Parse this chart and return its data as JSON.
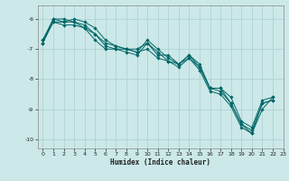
{
  "xlabel": "Humidex (Indice chaleur)",
  "bg_color": "#cce8e8",
  "line_color": "#006666",
  "grid_color": "#aacfcf",
  "xlim": [
    -0.5,
    23
  ],
  "ylim": [
    -10.3,
    -5.55
  ],
  "yticks": [
    -10,
    -9,
    -8,
    -7,
    -6
  ],
  "xticks": [
    0,
    1,
    2,
    3,
    4,
    5,
    6,
    7,
    8,
    9,
    10,
    11,
    12,
    13,
    14,
    15,
    16,
    17,
    18,
    19,
    20,
    21,
    22,
    23
  ],
  "marker_series": [
    {
      "x": [
        0,
        1,
        2,
        3,
        4,
        5,
        6,
        7,
        8,
        9,
        10,
        11,
        12,
        13,
        14,
        15,
        16,
        17,
        18,
        19,
        20,
        21,
        22
      ],
      "y": [
        -6.7,
        -6.1,
        -6.1,
        -6.0,
        -6.1,
        -6.3,
        -6.7,
        -6.9,
        -7.0,
        -7.0,
        -6.8,
        -7.2,
        -7.2,
        -7.5,
        -7.2,
        -7.5,
        -8.3,
        -8.3,
        -8.6,
        -9.4,
        -9.6,
        -8.7,
        -8.6
      ]
    },
    {
      "x": [
        0,
        1,
        2,
        3,
        4,
        5,
        6,
        7,
        8,
        9,
        10,
        11,
        12,
        13,
        14,
        15,
        16,
        17,
        18,
        19,
        20,
        21,
        22
      ],
      "y": [
        -6.8,
        -6.0,
        -6.1,
        -6.1,
        -6.3,
        -6.7,
        -7.0,
        -7.0,
        -7.1,
        -7.2,
        -6.8,
        -7.1,
        -7.4,
        -7.5,
        -7.3,
        -7.7,
        -8.4,
        -8.5,
        -8.9,
        -9.6,
        -9.8,
        -9.0,
        -8.6
      ]
    },
    {
      "x": [
        0,
        1,
        2,
        3,
        4,
        5,
        6,
        7,
        8,
        9,
        10,
        11,
        12,
        13,
        14,
        15,
        16,
        17,
        18,
        19,
        20,
        21,
        22
      ],
      "y": [
        -6.8,
        -6.1,
        -6.2,
        -6.2,
        -6.3,
        -6.5,
        -6.9,
        -7.0,
        -7.0,
        -7.1,
        -7.0,
        -7.3,
        -7.4,
        -7.6,
        -7.3,
        -7.6,
        -8.3,
        -8.4,
        -8.8,
        -9.5,
        -9.7,
        -8.8,
        -8.7
      ]
    },
    {
      "x": [
        0,
        1,
        2,
        3,
        4,
        5,
        6,
        7,
        8,
        9,
        10,
        11,
        12,
        13,
        14,
        15,
        16,
        17,
        18,
        19,
        20,
        21,
        22
      ],
      "y": [
        -6.7,
        -6.0,
        -6.0,
        -6.1,
        -6.2,
        -6.5,
        -6.8,
        -6.9,
        -7.0,
        -7.1,
        -6.7,
        -7.0,
        -7.3,
        -7.5,
        -7.2,
        -7.6,
        -8.3,
        -8.3,
        -8.8,
        -9.5,
        -9.8,
        -8.8,
        -8.7
      ]
    }
  ]
}
